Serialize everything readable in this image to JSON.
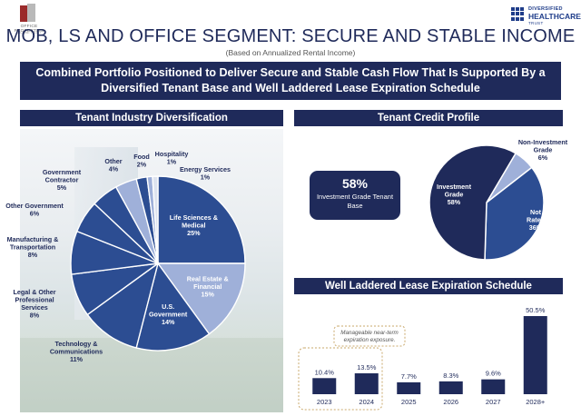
{
  "header": {
    "left_logo": {
      "name": "OFFICE PROPERTIES",
      "sub": "INCOME TRUST"
    },
    "right_logo": {
      "line1": "DIVERSIFIED",
      "line2": "HEALTHCARE",
      "line3": "TRUST"
    },
    "title": "MOB, LS AND OFFICE SEGMENT: SECURE AND STABLE INCOME",
    "subtitle": "(Based on Annualized Rental Income)"
  },
  "banner": {
    "line1": "Combined Portfolio Positioned to Deliver Secure and Stable Cash Flow That Is Supported By a",
    "line2": "Diversified Tenant Base and Well Laddered Lease Expiration Schedule"
  },
  "colors": {
    "navy": "#1f2a5a",
    "royal": "#2c4d92",
    "periwinkle": "#9fb0d9",
    "light": "#c5d0e7",
    "pale": "#dde3ef"
  },
  "sections": {
    "tenant_industry": "Tenant Industry Diversification",
    "tenant_credit": "Tenant Credit Profile",
    "lease_schedule": "Well Laddered Lease Expiration Schedule"
  },
  "credit_box": {
    "value": "58%",
    "label": "Investment Grade Tenant Base"
  },
  "chart_data": [
    {
      "type": "pie",
      "title": "Tenant Industry Diversification",
      "slices": [
        {
          "label": "Life Sciences & Medical",
          "value": 25,
          "display": "25%",
          "color": "#2c4d92"
        },
        {
          "label": "Real Estate & Financial",
          "value": 15,
          "display": "15%",
          "color": "#9fb0d9"
        },
        {
          "label": "U.S. Government",
          "value": 14,
          "display": "14%",
          "color": "#2c4d92"
        },
        {
          "label": "Technology & Communications",
          "value": 11,
          "display": "11%",
          "color": "#2c4d92"
        },
        {
          "label": "Legal & Other Professional Services",
          "value": 8,
          "display": "8%",
          "color": "#2c4d92"
        },
        {
          "label": "Manufacturing & Transportation",
          "value": 8,
          "display": "8%",
          "color": "#2c4d92"
        },
        {
          "label": "Other Government",
          "value": 6,
          "display": "6%",
          "color": "#2c4d92"
        },
        {
          "label": "Government Contractor",
          "value": 5,
          "display": "5%",
          "color": "#2c4d92"
        },
        {
          "label": "Other",
          "value": 4,
          "display": "4%",
          "color": "#9fb0d9"
        },
        {
          "label": "Food",
          "value": 2,
          "display": "2%",
          "color": "#2c4d92"
        },
        {
          "label": "Hospitality",
          "value": 1,
          "display": "1%",
          "color": "#9fb0d9"
        },
        {
          "label": "Energy Services",
          "value": 1,
          "display": "1%",
          "color": "#dde3ef"
        }
      ]
    },
    {
      "type": "pie",
      "title": "Tenant Credit Profile",
      "slices": [
        {
          "label": "Investment Grade",
          "value": 58,
          "display": "58%",
          "color": "#1f2a5a"
        },
        {
          "label": "Not Rated",
          "value": 36,
          "display": "36%",
          "color": "#2c4d92"
        },
        {
          "label": "Non-Investment Grade",
          "value": 6,
          "display": "6%",
          "color": "#9fb0d9"
        }
      ]
    },
    {
      "type": "bar",
      "title": "Well Laddered Lease Expiration Schedule",
      "categories": [
        "2023",
        "2024",
        "2025",
        "2026",
        "2027",
        "2028+"
      ],
      "values": [
        10.4,
        13.5,
        7.7,
        8.3,
        9.6,
        50.5
      ],
      "value_labels": [
        "10.4%",
        "13.5%",
        "7.7%",
        "8.3%",
        "9.6%",
        "50.5%"
      ],
      "ylim": [
        0,
        50.5
      ],
      "annotation": "Manageable near-term expiration exposure."
    }
  ]
}
